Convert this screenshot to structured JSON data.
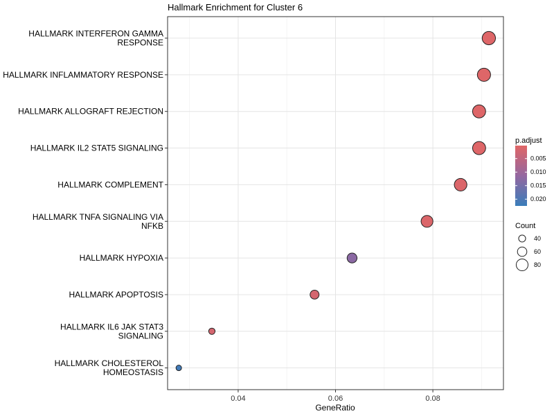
{
  "chart_data": {
    "type": "scatter",
    "title": "Hallmark Enrichment for Cluster 6",
    "xlabel": "GeneRatio",
    "ylabel": "",
    "xlim": [
      0.0255,
      0.0945
    ],
    "xticks": [
      0.04,
      0.06,
      0.08
    ],
    "xtick_labels": [
      "0.04",
      "0.06",
      "0.08"
    ],
    "grid": true,
    "points": [
      {
        "label_lines": [
          "HALLMARK INTERFERON GAMMA",
          "RESPONSE"
        ],
        "x": 0.0915,
        "p_adjust": 0.0005,
        "count": 92
      },
      {
        "label_lines": [
          "HALLMARK INFLAMMATORY RESPONSE"
        ],
        "x": 0.0905,
        "p_adjust": 0.0005,
        "count": 91
      },
      {
        "label_lines": [
          "HALLMARK ALLOGRAFT REJECTION"
        ],
        "x": 0.0895,
        "p_adjust": 0.0005,
        "count": 90
      },
      {
        "label_lines": [
          "HALLMARK IL2 STAT5 SIGNALING"
        ],
        "x": 0.0895,
        "p_adjust": 0.0005,
        "count": 90
      },
      {
        "label_lines": [
          "HALLMARK COMPLEMENT"
        ],
        "x": 0.0857,
        "p_adjust": 0.001,
        "count": 86
      },
      {
        "label_lines": [
          "HALLMARK TNFA SIGNALING VIA",
          "NFKB"
        ],
        "x": 0.0788,
        "p_adjust": 0.001,
        "count": 80
      },
      {
        "label_lines": [
          "HALLMARK HYPOXIA"
        ],
        "x": 0.0634,
        "p_adjust": 0.0125,
        "count": 64
      },
      {
        "label_lines": [
          "HALLMARK APOPTOSIS"
        ],
        "x": 0.0557,
        "p_adjust": 0.002,
        "count": 56
      },
      {
        "label_lines": [
          "HALLMARK IL6 JAK STAT3",
          "SIGNALING"
        ],
        "x": 0.0346,
        "p_adjust": 0.002,
        "count": 35
      },
      {
        "label_lines": [
          "HALLMARK CHOLESTEROL",
          "HOMEOSTASIS"
        ],
        "x": 0.0278,
        "p_adjust": 0.0215,
        "count": 28
      }
    ],
    "legend": {
      "placement": "right",
      "color": {
        "title": "p.adjust",
        "min": 0.0002,
        "max": 0.0225,
        "ticks": [
          0.005,
          0.01,
          0.015,
          0.02
        ],
        "tick_labels": [
          "0.005",
          "0.010",
          "0.015",
          "0.020"
        ],
        "low_color": "#E06666",
        "mid_color": "#9467A0",
        "high_color": "#3A7DBA"
      },
      "size": {
        "title": "Count",
        "values": [
          40,
          60,
          80
        ],
        "labels": [
          "40",
          "60",
          "80"
        ]
      }
    }
  }
}
